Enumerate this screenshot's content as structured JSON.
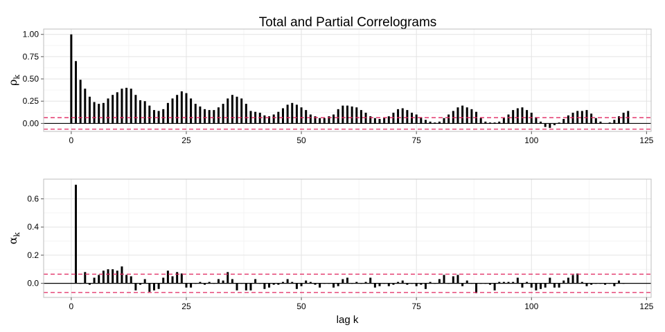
{
  "title": "Total and Partial Correlograms",
  "colors": {
    "bar": "#000000",
    "band": "#e0245e",
    "grid_major": "#e3e3e3",
    "grid_minor": "#f2f2f2",
    "panel_border": "#bdbdbd"
  },
  "chart_data": [
    {
      "type": "bar",
      "panel": "total",
      "ylabel": "ρ",
      "ylabel_sub": "k",
      "xlabel": "",
      "xticks": [
        0,
        25,
        50,
        75,
        100,
        125
      ],
      "yticks": [
        0,
        0.25,
        0.5,
        0.75,
        1.0
      ],
      "ytick_labels": [
        "0.00",
        "0.25",
        "0.50",
        "0.75",
        "1.00"
      ],
      "xlim": [
        -6,
        126
      ],
      "ylim": [
        -0.09,
        1.06
      ],
      "confidence_band": [
        -0.065,
        0.065
      ],
      "grid": true,
      "x_start": 0,
      "values": [
        1.0,
        0.7,
        0.49,
        0.39,
        0.3,
        0.24,
        0.22,
        0.23,
        0.28,
        0.32,
        0.35,
        0.39,
        0.4,
        0.39,
        0.32,
        0.26,
        0.25,
        0.2,
        0.15,
        0.14,
        0.16,
        0.23,
        0.28,
        0.32,
        0.36,
        0.34,
        0.28,
        0.22,
        0.19,
        0.16,
        0.15,
        0.15,
        0.18,
        0.22,
        0.28,
        0.32,
        0.3,
        0.28,
        0.22,
        0.14,
        0.13,
        0.12,
        0.09,
        0.08,
        0.1,
        0.13,
        0.17,
        0.21,
        0.23,
        0.21,
        0.18,
        0.15,
        0.1,
        0.08,
        0.06,
        0.06,
        0.08,
        0.1,
        0.16,
        0.2,
        0.2,
        0.19,
        0.18,
        0.15,
        0.12,
        0.08,
        0.06,
        0.05,
        0.06,
        0.08,
        0.12,
        0.16,
        0.17,
        0.15,
        0.12,
        0.1,
        0.07,
        0.04,
        0.02,
        0.01,
        0.02,
        0.06,
        0.1,
        0.14,
        0.18,
        0.2,
        0.18,
        0.16,
        0.13,
        0.06,
        0.02,
        0.01,
        0.01,
        0.02,
        0.06,
        0.1,
        0.15,
        0.17,
        0.18,
        0.15,
        0.12,
        0.07,
        0.02,
        -0.04,
        -0.05,
        -0.02,
        0.01,
        0.05,
        0.09,
        0.12,
        0.14,
        0.14,
        0.15,
        0.11,
        0.06,
        0.02,
        0.0,
        0.01,
        0.04,
        0.08,
        0.12,
        0.14
      ]
    },
    {
      "type": "bar",
      "panel": "partial",
      "ylabel": "α",
      "ylabel_sub": "k",
      "xlabel": "lag k",
      "xticks": [
        0,
        25,
        50,
        75,
        100,
        125
      ],
      "yticks": [
        0,
        0.2,
        0.4,
        0.6
      ],
      "ytick_labels": [
        "0.0",
        "0.2",
        "0.4",
        "0.6"
      ],
      "xlim": [
        -6,
        126
      ],
      "ylim": [
        -0.1,
        0.74
      ],
      "confidence_band": [
        -0.065,
        0.065
      ],
      "grid": true,
      "x_start": 1,
      "values": [
        0.7,
        0.0,
        0.08,
        -0.01,
        0.04,
        0.06,
        0.09,
        0.1,
        0.1,
        0.09,
        0.12,
        0.06,
        0.05,
        -0.05,
        -0.01,
        0.03,
        -0.06,
        -0.05,
        -0.04,
        0.04,
        0.09,
        0.05,
        0.08,
        0.07,
        -0.03,
        -0.03,
        0.0,
        0.01,
        -0.01,
        0.01,
        0.0,
        0.03,
        0.02,
        0.08,
        0.03,
        -0.05,
        0.0,
        -0.05,
        -0.05,
        0.03,
        0.0,
        -0.04,
        -0.03,
        -0.01,
        -0.01,
        0.01,
        0.03,
        0.01,
        -0.04,
        -0.02,
        0.02,
        0.01,
        -0.01,
        -0.03,
        0.0,
        0.0,
        -0.03,
        -0.02,
        0.03,
        0.04,
        0.0,
        0.01,
        0.0,
        0.01,
        0.04,
        -0.03,
        -0.02,
        0.0,
        -0.02,
        -0.01,
        0.01,
        0.02,
        -0.01,
        0.0,
        -0.02,
        -0.01,
        -0.04,
        0.01,
        0.0,
        0.03,
        0.06,
        0.0,
        0.05,
        0.06,
        -0.02,
        0.02,
        0.0,
        -0.07,
        0.0,
        0.0,
        -0.01,
        -0.05,
        0.01,
        0.01,
        0.01,
        0.01,
        0.04,
        -0.03,
        0.01,
        -0.03,
        -0.05,
        -0.04,
        -0.03,
        0.04,
        -0.03,
        -0.03,
        0.02,
        0.04,
        0.06,
        0.07,
        0.01,
        -0.02,
        -0.01,
        0.0,
        0.0,
        -0.01,
        0.0,
        -0.02,
        0.02,
        0.0
      ]
    }
  ]
}
